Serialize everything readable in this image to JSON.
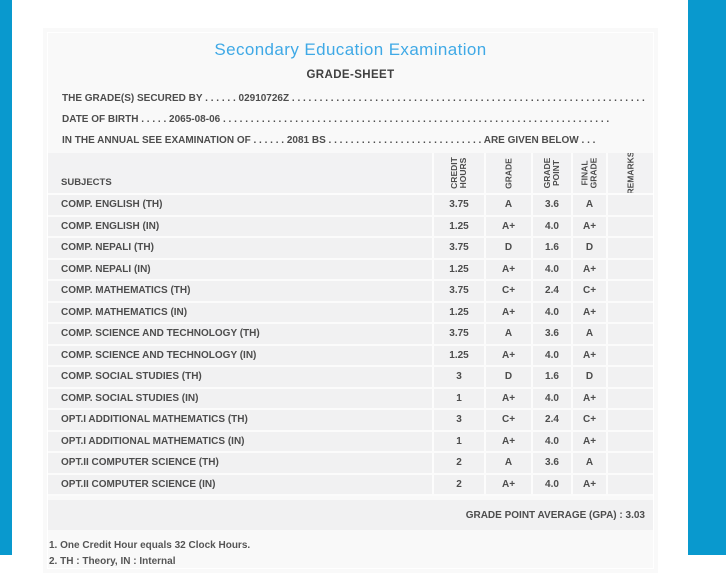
{
  "theme": {
    "accent_cyan": "#0999CE",
    "title_blue": "#3FA9E6",
    "page_bg": "#f9f9f9",
    "row_bg": "#f1f1f2",
    "text_color": "#4d4d4d"
  },
  "header": {
    "title": "Secondary Education Examination",
    "subtitle": "GRADE-SHEET",
    "line1": "THE GRADE(S) SECURED BY . . . . . . 02910726Z . . . . . . . . . . . . . . . . . . . . . . . . . . . . . . . . . . . . . . . . . . . . . . . . . . . . . . . . . . . . . . . . .",
    "line2": "DATE OF BIRTH . . . . . 2065-08-06 . . . . . . . . . . . . . . . . . . . . . . . . . . . . . . . . . . . . . . . . . . . . . . . . . . . . . . . . . . . . . . . . . . . . . .",
    "line3": "IN THE ANNUAL SEE EXAMINATION OF . . . . . . 2081 BS . . . . . . . . . . . . . . . . . . . . . . . . . . . . ARE GIVEN BELOW . . ."
  },
  "table": {
    "columns": [
      "SUBJECTS",
      "CREDIT HOURS",
      "GRADE",
      "GRADE POINT",
      "FINAL GRADE",
      "REMARKS"
    ],
    "rows": [
      {
        "subject": "COMP. ENGLISH (TH)",
        "credit": "3.75",
        "grade": "A",
        "gpoint": "3.6",
        "fgrade": "A",
        "remarks": ""
      },
      {
        "subject": "COMP. ENGLISH (IN)",
        "credit": "1.25",
        "grade": "A+",
        "gpoint": "4.0",
        "fgrade": "A+",
        "remarks": ""
      },
      {
        "subject": "COMP. NEPALI (TH)",
        "credit": "3.75",
        "grade": "D",
        "gpoint": "1.6",
        "fgrade": "D",
        "remarks": ""
      },
      {
        "subject": "COMP. NEPALI (IN)",
        "credit": "1.25",
        "grade": "A+",
        "gpoint": "4.0",
        "fgrade": "A+",
        "remarks": ""
      },
      {
        "subject": "COMP. MATHEMATICS (TH)",
        "credit": "3.75",
        "grade": "C+",
        "gpoint": "2.4",
        "fgrade": "C+",
        "remarks": ""
      },
      {
        "subject": "COMP. MATHEMATICS (IN)",
        "credit": "1.25",
        "grade": "A+",
        "gpoint": "4.0",
        "fgrade": "A+",
        "remarks": ""
      },
      {
        "subject": "COMP. SCIENCE AND TECHNOLOGY (TH)",
        "credit": "3.75",
        "grade": "A",
        "gpoint": "3.6",
        "fgrade": "A",
        "remarks": ""
      },
      {
        "subject": "COMP. SCIENCE AND TECHNOLOGY (IN)",
        "credit": "1.25",
        "grade": "A+",
        "gpoint": "4.0",
        "fgrade": "A+",
        "remarks": ""
      },
      {
        "subject": "COMP. SOCIAL STUDIES (TH)",
        "credit": "3",
        "grade": "D",
        "gpoint": "1.6",
        "fgrade": "D",
        "remarks": ""
      },
      {
        "subject": "COMP. SOCIAL STUDIES (IN)",
        "credit": "1",
        "grade": "A+",
        "gpoint": "4.0",
        "fgrade": "A+",
        "remarks": ""
      },
      {
        "subject": "OPT.I ADDITIONAL MATHEMATICS (TH)",
        "credit": "3",
        "grade": "C+",
        "gpoint": "2.4",
        "fgrade": "C+",
        "remarks": ""
      },
      {
        "subject": "OPT.I ADDITIONAL MATHEMATICS (IN)",
        "credit": "1",
        "grade": "A+",
        "gpoint": "4.0",
        "fgrade": "A+",
        "remarks": ""
      },
      {
        "subject": "OPT.II COMPUTER SCIENCE (TH)",
        "credit": "2",
        "grade": "A",
        "gpoint": "3.6",
        "fgrade": "A",
        "remarks": ""
      },
      {
        "subject": "OPT.II COMPUTER SCIENCE (IN)",
        "credit": "2",
        "grade": "A+",
        "gpoint": "4.0",
        "fgrade": "A+",
        "remarks": ""
      }
    ],
    "gpa_line": "GRADE POINT AVERAGE (GPA) : 3.03"
  },
  "footnotes": [
    "1. One Credit Hour equals 32 Clock Hours.",
    "2. TH : Theory, IN : Internal"
  ]
}
